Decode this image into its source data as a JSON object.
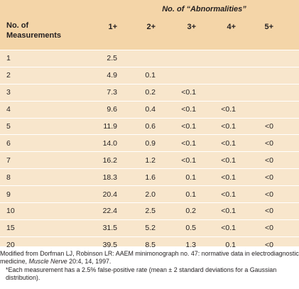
{
  "table": {
    "super_header": "No. of “Abnormalities”",
    "row_header_line1": "No. of",
    "row_header_line2": "Measurements",
    "col_headers": [
      "1+",
      "2+",
      "3+",
      "4+",
      "5+"
    ],
    "rows": [
      {
        "label": "1",
        "values": [
          "2.5",
          "",
          "",
          "",
          ""
        ]
      },
      {
        "label": "2",
        "values": [
          "4.9",
          "0.1",
          "",
          "",
          ""
        ]
      },
      {
        "label": "3",
        "values": [
          "7.3",
          "0.2",
          "<0.1",
          "",
          ""
        ]
      },
      {
        "label": "4",
        "values": [
          "9.6",
          "0.4",
          "<0.1",
          "<0.1",
          ""
        ]
      },
      {
        "label": "5",
        "values": [
          "11.9",
          "0.6",
          "<0.1",
          "<0.1",
          "<0"
        ]
      },
      {
        "label": "6",
        "values": [
          "14.0",
          "0.9",
          "<0.1",
          "<0.1",
          "<0"
        ]
      },
      {
        "label": "7",
        "values": [
          "16.2",
          "1.2",
          "<0.1",
          "<0.1",
          "<0"
        ]
      },
      {
        "label": "8",
        "values": [
          "18.3",
          "1.6",
          "0.1",
          "<0.1",
          "<0"
        ]
      },
      {
        "label": "9",
        "values": [
          "20.4",
          "2.0",
          "0.1",
          "<0.1",
          "<0"
        ]
      },
      {
        "label": "10",
        "values": [
          "22.4",
          "2.5",
          "0.2",
          "<0.1",
          "<0"
        ]
      },
      {
        "label": "15",
        "values": [
          "31.5",
          "5.2",
          "0.5",
          "<0.1",
          "<0"
        ]
      },
      {
        "label": "20",
        "values": [
          "39.5",
          "8.5",
          "1.3",
          "0.1",
          "<0"
        ]
      }
    ]
  },
  "footnote": {
    "source_prefix": "Modified from Dorfman LJ, Robinson LR: AAEM minimonograph no. 47: normative data in electrodiagnostic medicine, ",
    "source_journal": "Muscle Nerve",
    "source_suffix": " 20:4, 14, 1997.",
    "note": "*Each measurement has a 2.5% false-positive rate (mean ± 2 standard deviations for a Gaussian distribution)."
  },
  "colors": {
    "header_bg": "#f4d5a8",
    "body_bg": "#f8e6cc",
    "row_divider": "#ffffff",
    "text": "#231f20"
  }
}
